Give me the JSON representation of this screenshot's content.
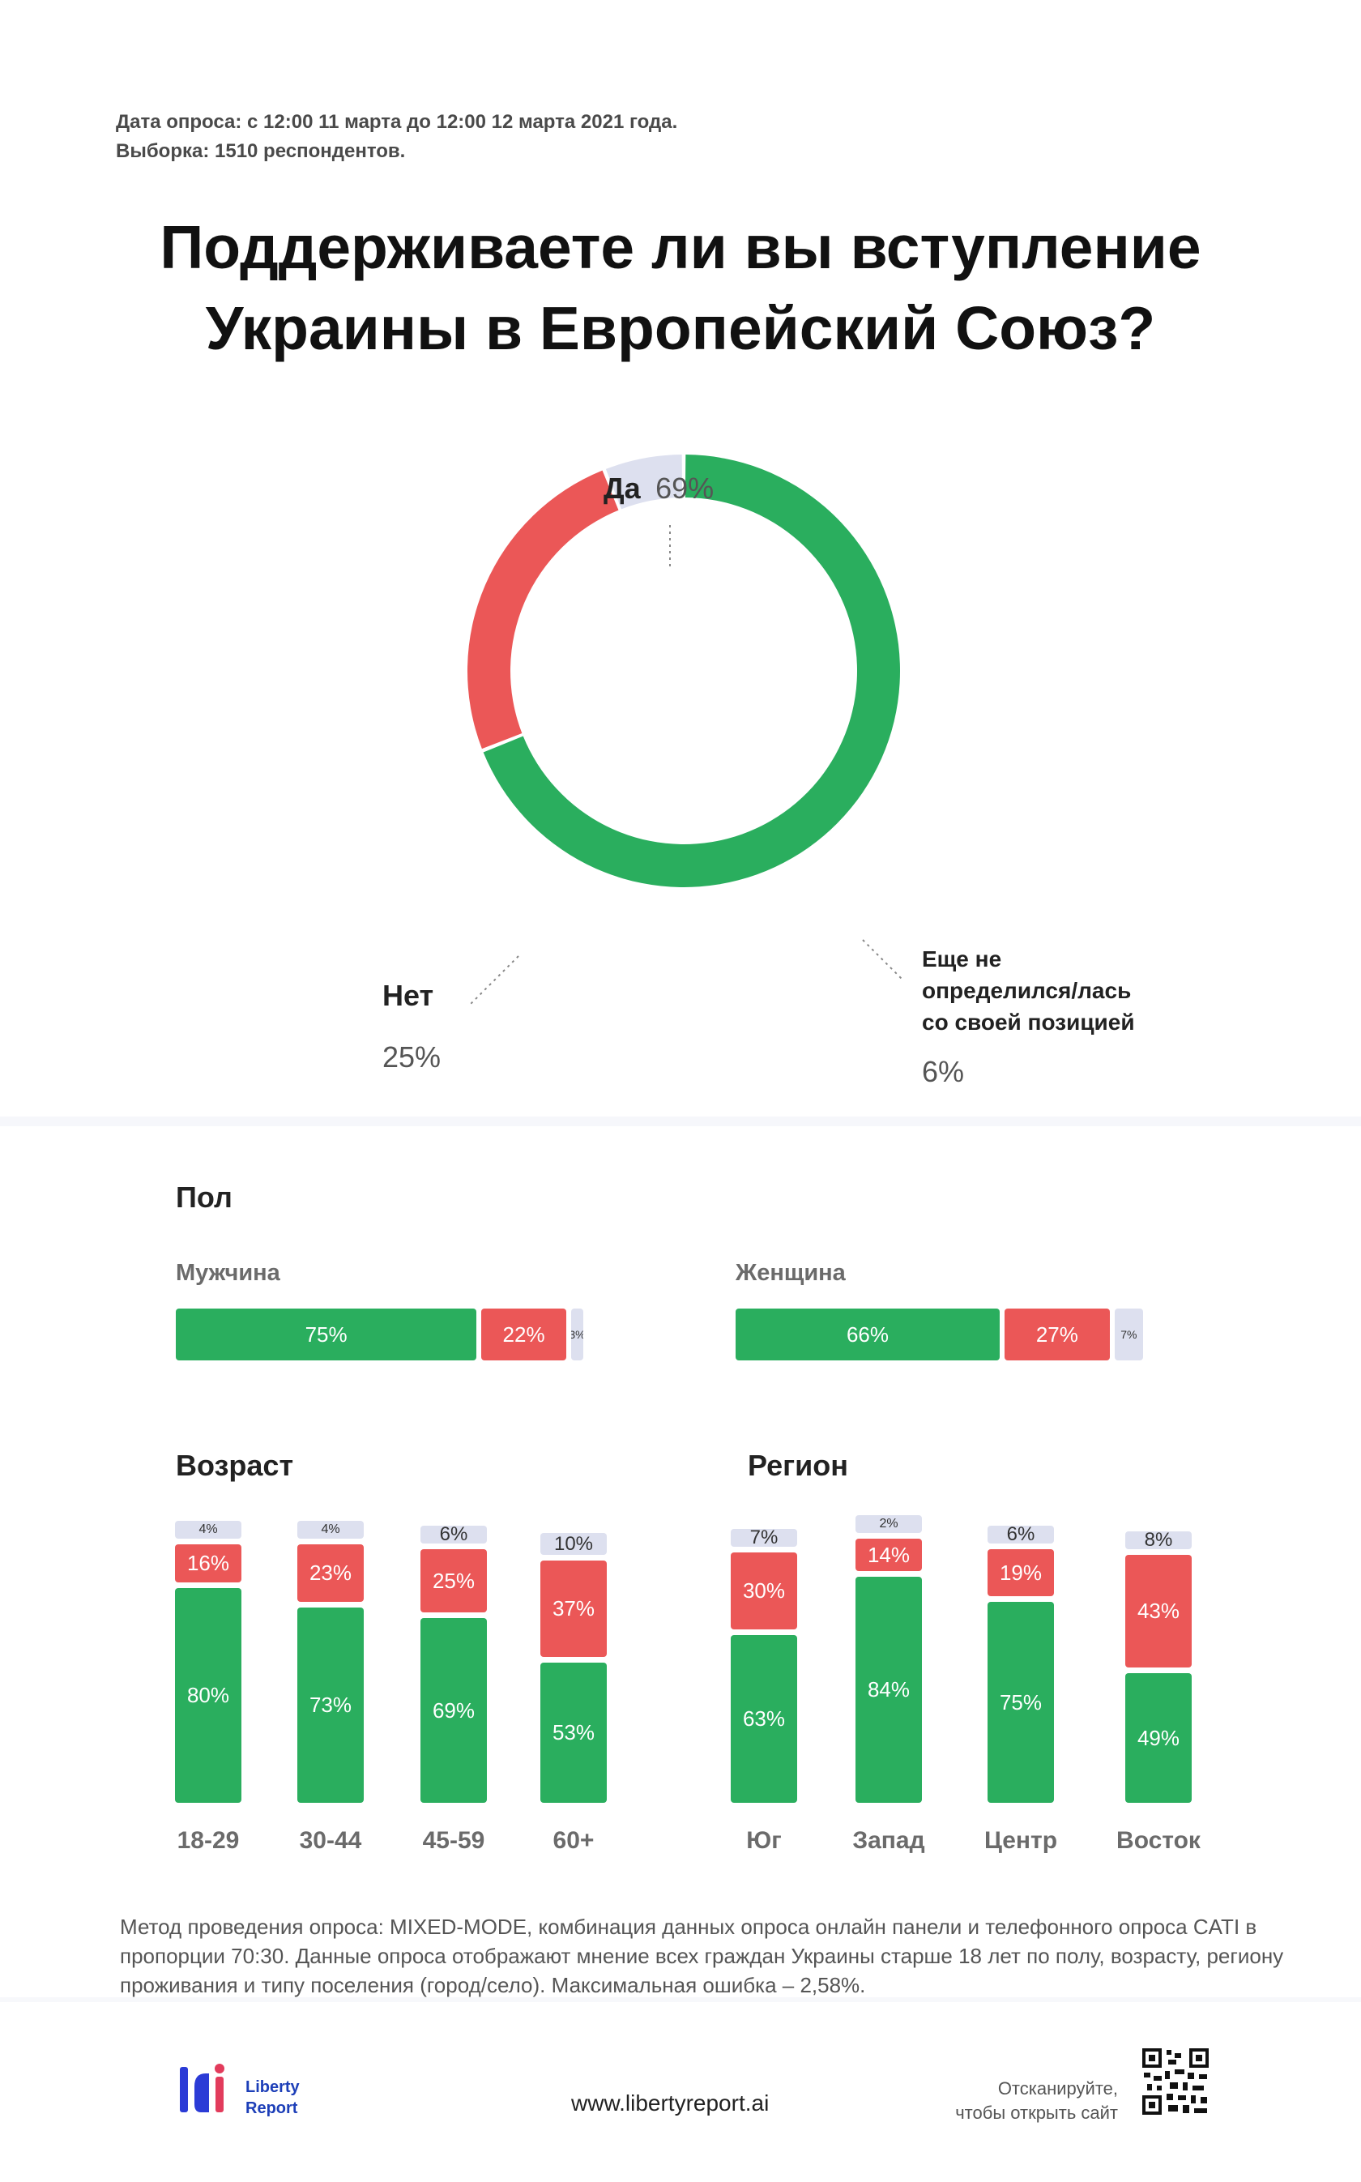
{
  "header": {
    "survey_date": "Дата опроса: с 12:00 11 марта до 12:00 12 марта 2021 года.",
    "sample": "Выборка: 1510 респондентов.",
    "title_line1": "Поддерживаете ли вы вступление",
    "title_line2": "Украины в Европейский Союз?"
  },
  "colors": {
    "yes": "#2aae5e",
    "no": "#eb5757",
    "undecided": "#dde0ef"
  },
  "donut_labels": {
    "yes": "Да",
    "yes_pct": "69%",
    "no": "Нет",
    "no_pct": "25%",
    "undecided_1": "Еще не",
    "undecided_2": "определился/лась",
    "undecided_3": "со своей позицией",
    "undecided_pct": "6%"
  },
  "chart_data": [
    {
      "type": "pie",
      "title": "Поддерживаете ли вы вступление Украины в Европейский Союз?",
      "categories": [
        "Да",
        "Нет",
        "Еще не определился/лась со своей позицией"
      ],
      "values": [
        69,
        25,
        6
      ]
    },
    {
      "type": "bar",
      "title": "Пол",
      "categories": [
        "Мужчина",
        "Женщина"
      ],
      "series": [
        {
          "name": "Да",
          "values": [
            75,
            66
          ]
        },
        {
          "name": "Нет",
          "values": [
            22,
            27
          ]
        },
        {
          "name": "Еще не определился/лась",
          "values": [
            3,
            7
          ]
        }
      ]
    },
    {
      "type": "bar",
      "title": "Возраст",
      "categories": [
        "18-29",
        "30-44",
        "45-59",
        "60+"
      ],
      "series": [
        {
          "name": "Да",
          "values": [
            80,
            73,
            69,
            53
          ]
        },
        {
          "name": "Нет",
          "values": [
            16,
            23,
            25,
            37
          ]
        },
        {
          "name": "Еще не определился/лась",
          "values": [
            4,
            4,
            6,
            10
          ]
        }
      ]
    },
    {
      "type": "bar",
      "title": "Регион",
      "categories": [
        "Юг",
        "Запад",
        "Центр",
        "Восток"
      ],
      "series": [
        {
          "name": "Да",
          "values": [
            63,
            84,
            75,
            49
          ]
        },
        {
          "name": "Нет",
          "values": [
            30,
            14,
            19,
            43
          ]
        },
        {
          "name": "Еще не определился/лась",
          "values": [
            7,
            2,
            6,
            8
          ]
        }
      ]
    }
  ],
  "sections": {
    "gender": "Пол",
    "male": "Мужчина",
    "female": "Женщина",
    "age": "Возраст",
    "region": "Регион"
  },
  "footer": {
    "method": "Метод проведения опроса:  MIXED-MODE, комбинация данных опроса онлайн панели и телефонного опроса CATI в пропорции 70:30. Данные опроса отображают мнение всех граждан Украины старше 18 лет по полу, возрасту, региону проживания и типу поселения (город/село). Максимальная ошибка – 2,58%.",
    "logo_line1": "Liberty",
    "logo_line2": "Report",
    "url": "www.libertyreport.ai",
    "scan_line1": "Отсканируйте,",
    "scan_line2": "чтобы открыть сайт"
  }
}
